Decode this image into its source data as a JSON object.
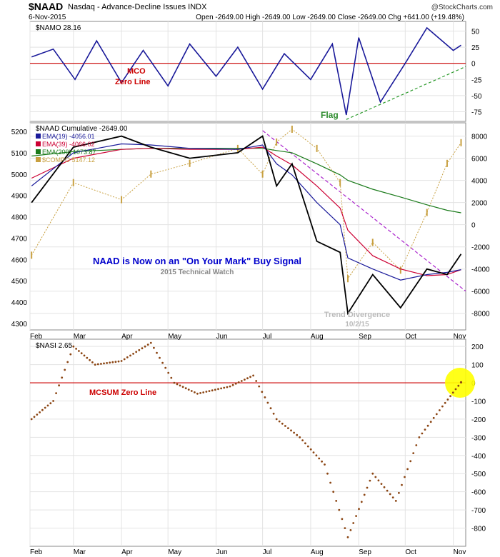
{
  "header": {
    "symbol": "$NAAD",
    "name": "Nasdaq - Advance-Decline Issues INDX",
    "date": "6-Nov-2015",
    "ohlc": "Open -2649.00  High -2649.00  Low -2649.00  Close -2649.00  Chg +641.00 (+19.48%)",
    "credit": "@StockCharts.com"
  },
  "x_months": [
    "Feb",
    "Mar",
    "Apr",
    "May",
    "Jun",
    "Jul",
    "Aug",
    "Sep",
    "Oct",
    "Nov"
  ],
  "colors": {
    "blue": "#1a1a9a",
    "red": "#cc0000",
    "black": "#000000",
    "ema19": "#1a1a9a",
    "ema39": "#cc0033",
    "ema200": "#1a7a1a",
    "compo": "#c8a040",
    "nasi": "#8b4513",
    "green_dash": "#2a9a2a",
    "purple_dash": "#aa22cc",
    "highlight": "#ffff00"
  },
  "chart_data": [
    {
      "type": "line",
      "title": "$NAMO 28.16",
      "y_ticks": [
        50,
        25,
        0,
        -25,
        -50,
        -75
      ],
      "ylim": [
        -90,
        65
      ],
      "annotations": [
        "MCO",
        "Zero Line",
        "Flag"
      ],
      "series": [
        {
          "name": "$NAMO",
          "x": [
            "2015-02-02",
            "2015-02-16",
            "2015-03-02",
            "2015-03-16",
            "2015-04-01",
            "2015-04-15",
            "2015-05-01",
            "2015-05-15",
            "2015-06-01",
            "2015-06-15",
            "2015-07-01",
            "2015-07-15",
            "2015-08-01",
            "2015-08-15",
            "2015-08-24",
            "2015-09-01",
            "2015-09-15",
            "2015-10-01",
            "2015-10-15",
            "2015-11-01",
            "2015-11-06"
          ],
          "values": [
            10,
            22,
            -25,
            35,
            -30,
            20,
            -35,
            30,
            -20,
            25,
            -40,
            15,
            -25,
            30,
            -80,
            40,
            -60,
            0,
            55,
            20,
            28.16
          ]
        }
      ]
    },
    {
      "type": "line",
      "title": "$NAAD Cumulative -2649.00",
      "legend": [
        "EMA(19) -4056.01",
        "EMA(39) -4066.02",
        "EMA(200) 1073.87",
        "$COMPO 5147.12"
      ],
      "y_left_ticks": [
        5200,
        5100,
        5000,
        4900,
        4800,
        4700,
        4600,
        4500,
        4400,
        4300
      ],
      "y_right_ticks": [
        8000,
        6000,
        4000,
        2000,
        0,
        -2000,
        -4000,
        -6000,
        -8000
      ],
      "ylim_right": [
        -9500,
        9200
      ],
      "annotations": [
        "NAAD is Now on an \"On Your Mark\" Buy Signal",
        "2015 Technical Watch",
        "Trend Divergence",
        "10/2/15"
      ],
      "x": [
        "2015-02-02",
        "2015-03-01",
        "2015-04-01",
        "2015-04-20",
        "2015-05-15",
        "2015-06-15",
        "2015-07-01",
        "2015-07-10",
        "2015-07-20",
        "2015-08-05",
        "2015-08-20",
        "2015-08-25",
        "2015-09-10",
        "2015-09-28",
        "2015-10-15",
        "2015-10-28",
        "2015-11-06"
      ],
      "series": [
        {
          "name": "$NAAD Cumulative",
          "values": [
            2000,
            7000,
            8000,
            7000,
            6000,
            6500,
            8000,
            3500,
            5500,
            -1500,
            -2500,
            -8000,
            -4500,
            -7500,
            -4000,
            -4500,
            -2649
          ]
        },
        {
          "name": "EMA(19)",
          "values": [
            3500,
            6500,
            7300,
            7200,
            6900,
            6800,
            7200,
            5500,
            4500,
            2000,
            0,
            -3000,
            -4000,
            -5000,
            -4500,
            -4300,
            -4056
          ]
        },
        {
          "name": "EMA(39)",
          "values": [
            4200,
            6000,
            6800,
            6900,
            6800,
            6800,
            7000,
            6200,
            5400,
            3500,
            1500,
            -500,
            -2800,
            -4000,
            -4600,
            -4500,
            -4066
          ]
        },
        {
          "name": "EMA(200)",
          "values": [
            6200,
            6600,
            6800,
            6900,
            6900,
            6900,
            6900,
            6700,
            6500,
            5500,
            4500,
            4000,
            3200,
            2500,
            1800,
            1300,
            1074
          ]
        },
        {
          "name": "$COMPO",
          "values": [
            4620,
            4960,
            4880,
            5000,
            5050,
            5120,
            5000,
            5150,
            5210,
            5120,
            4960,
            4510,
            4680,
            4550,
            4820,
            5050,
            5147
          ]
        }
      ]
    },
    {
      "type": "scatter",
      "title": "$NASI 2.65",
      "y_ticks": [
        200,
        100,
        0,
        -100,
        -200,
        -300,
        -400,
        -500,
        -600,
        -700,
        -800
      ],
      "ylim": [
        -900,
        240
      ],
      "annotations": [
        "MCSUM Zero Line"
      ],
      "x": [
        "2015-02-02",
        "2015-02-16",
        "2015-03-01",
        "2015-03-15",
        "2015-04-01",
        "2015-04-20",
        "2015-05-05",
        "2015-05-20",
        "2015-06-10",
        "2015-06-25",
        "2015-07-10",
        "2015-07-25",
        "2015-08-10",
        "2015-08-25",
        "2015-09-10",
        "2015-09-25",
        "2015-10-10",
        "2015-10-25",
        "2015-11-06"
      ],
      "series": [
        {
          "name": "$NASI",
          "values": [
            -200,
            -100,
            200,
            100,
            120,
            220,
            0,
            -60,
            -20,
            40,
            -200,
            -300,
            -450,
            -850,
            -500,
            -650,
            -300,
            -130,
            2.65
          ]
        }
      ]
    }
  ]
}
